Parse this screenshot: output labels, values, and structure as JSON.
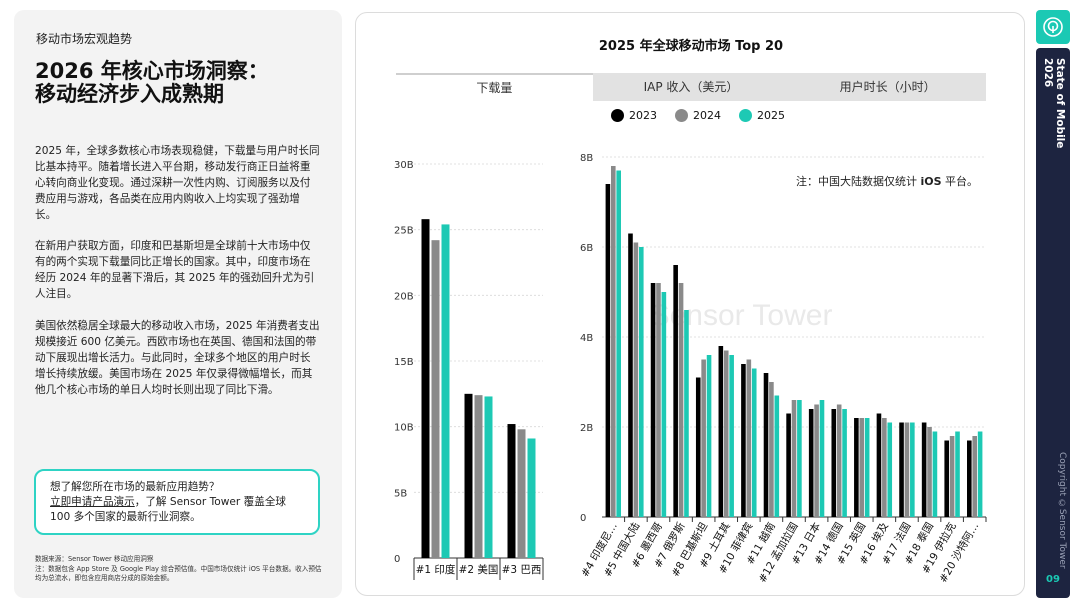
{
  "left": {
    "section_label": "移动市场宏观趋势",
    "headline_line1": "2026 年核心市场洞察：",
    "headline_line2": "移动经济步入成熟期",
    "para1": "2025 年，全球多数核心市场表现稳健，下载量与用户时长同比基本持平。随着增长进入平台期，移动发行商正日益将重心转向商业化变现。通过深耕一次性内购、订阅服务以及付费应用与游戏，各品类在应用内购收入上均实现了强劲增长。",
    "para2": "在新用户获取方面，印度和巴基斯坦是全球前十大市场中仅有的两个实现下载量同比正增长的国家。其中，印度市场在经历 2024 年的显著下滑后，其 2025 年的强劲回升尤为引人注目。",
    "para3": "美国依然稳居全球最大的移动收入市场，2025 年消费者支出规模接近 600 亿美元。西欧市场也在英国、德国和法国的带动下展现出增长活力。与此同时，全球多个地区的用户时长增长持续放缓。美国市场在 2025 年仅录得微幅增长，而其他几个核心市场的单日人均时长则出现了同比下滑。",
    "cta_line1": "想了解您所在市场的最新应用趋势？",
    "cta_line2_link": "立即申请产品演示",
    "cta_line2_rest": "，了解 Sensor Tower 覆盖全球",
    "cta_line3": "100 多个国家的最新行业洞察。",
    "footnote_line1": "数据来源：Sensor Tower 移动应用洞察",
    "footnote_line2": "注：数据包含 App Store 及 Google Play 综合预估值。中国市场仅统计 iOS 平台数据。收入预估均为总流水，即包含应用商店分成的原始金额。"
  },
  "chart_panel": {
    "tabs": [
      {
        "label": "下载量",
        "active": true
      },
      {
        "label": "IAP 收入（美元）",
        "active": false
      },
      {
        "label": "用户时长（小时）",
        "active": false
      }
    ],
    "note_prefix": "注：中国大陆数据仅统计",
    "note_bold": "iOS",
    "note_suffix": "平台。",
    "watermark": "Sensor Tower"
  },
  "sidebar": {
    "title": "State of Mobile 2026",
    "copyright": "Copyright  ©Sensor Tower",
    "page_number": "09"
  },
  "colors": {
    "y2023": "#000000",
    "y2024": "#8a8a8a",
    "y2025": "#1dc9b4",
    "accent": "#1bc9b4",
    "sidebar_bg": "#1d2440"
  },
  "chart_data": [
    {
      "type": "bar",
      "title": "2025 年全球移动市场 Top 20",
      "legend": [
        "2023",
        "2024",
        "2025"
      ],
      "legend_position": "top",
      "unit": "downloads (billions)",
      "categories": [
        "#1 印度",
        "#2 美国",
        "#3 巴西"
      ],
      "ylim": [
        0,
        30
      ],
      "yticks": [
        0,
        5,
        10,
        15,
        20,
        25,
        30
      ],
      "ytick_labels": [
        "0",
        "5B",
        "10B",
        "15B",
        "20B",
        "25B",
        "30B"
      ],
      "grid": true,
      "series": [
        {
          "name": "2023",
          "values": [
            25.8,
            12.5,
            10.2
          ]
        },
        {
          "name": "2024",
          "values": [
            24.2,
            12.4,
            9.8
          ]
        },
        {
          "name": "2025",
          "values": [
            25.4,
            12.3,
            9.1
          ]
        }
      ]
    },
    {
      "type": "bar",
      "unit": "downloads (billions)",
      "categories": [
        "#4 印度尼…",
        "#5 中国大陆",
        "#6 墨西哥",
        "#7 俄罗斯",
        "#8 巴基斯坦",
        "#9 土耳其",
        "#10 菲律宾",
        "#11 越南",
        "#12 孟加拉国",
        "#13 日本",
        "#14 德国",
        "#15 英国",
        "#16 埃及",
        "#17 法国",
        "#18 泰国",
        "#19 伊拉克",
        "#20 沙特阿…"
      ],
      "ylim": [
        0,
        8
      ],
      "yticks": [
        0,
        2,
        4,
        6,
        8
      ],
      "ytick_labels": [
        "0",
        "2B",
        "4B",
        "6B",
        "8B"
      ],
      "grid": true,
      "series": [
        {
          "name": "2023",
          "values": [
            7.4,
            6.3,
            5.2,
            5.6,
            3.1,
            3.8,
            3.4,
            3.2,
            2.3,
            2.4,
            2.4,
            2.2,
            2.3,
            2.1,
            2.1,
            1.7,
            1.7
          ]
        },
        {
          "name": "2024",
          "values": [
            7.8,
            6.1,
            5.2,
            5.2,
            3.5,
            3.7,
            3.5,
            3.0,
            2.6,
            2.5,
            2.5,
            2.2,
            2.2,
            2.1,
            2.0,
            1.8,
            1.8
          ]
        },
        {
          "name": "2025",
          "values": [
            7.7,
            6.0,
            5.0,
            4.6,
            3.6,
            3.6,
            3.3,
            2.7,
            2.6,
            2.6,
            2.4,
            2.2,
            2.1,
            2.1,
            1.9,
            1.9,
            1.9
          ]
        }
      ]
    }
  ]
}
